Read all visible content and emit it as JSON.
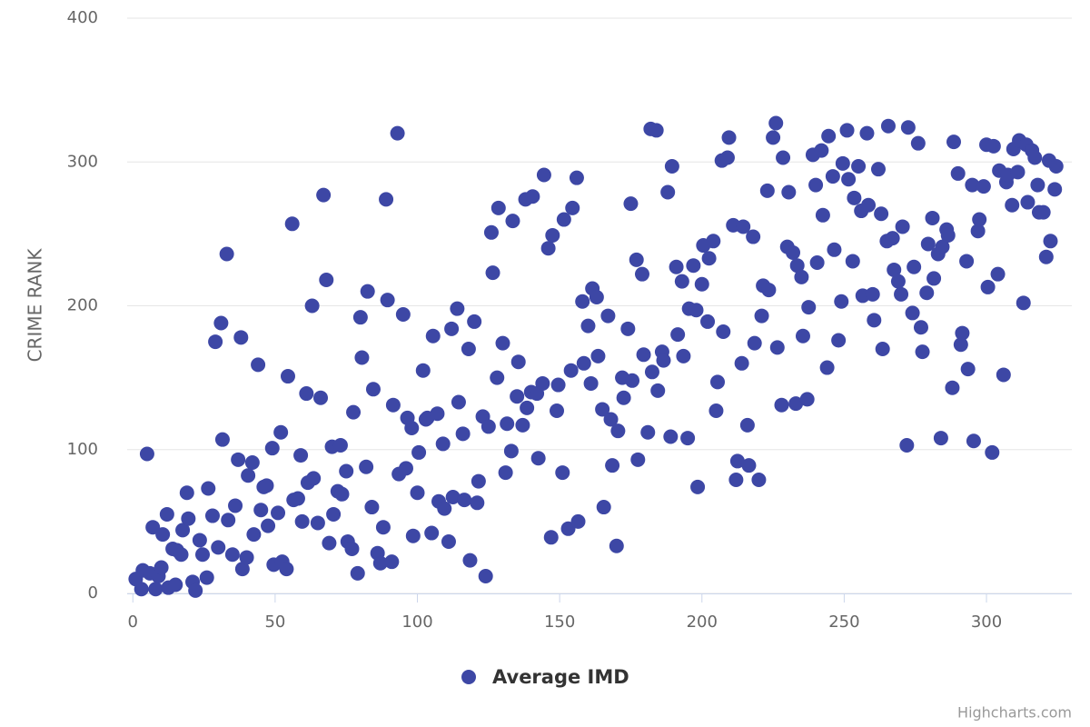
{
  "chart_data": {
    "type": "scatter",
    "y_label": "CRIME RANK",
    "credits": "Highcharts.com",
    "xlim": [
      -2,
      330
    ],
    "xticks": [
      0,
      50,
      100,
      150,
      200,
      250,
      300
    ],
    "ylim": [
      0,
      400
    ],
    "yticks": [
      0,
      100,
      200,
      300,
      400
    ],
    "grid": true,
    "legend": "bottom",
    "series": [
      {
        "name": "Average IMD",
        "color": "#3d47a5",
        "x": [
          1,
          3,
          3.5,
          5,
          6,
          7,
          8,
          9,
          10,
          10.5,
          12,
          12.5,
          14,
          15,
          15.5,
          17,
          17.5,
          19,
          19.5,
          21,
          22,
          23.5,
          24.5,
          26,
          26.5,
          28,
          29,
          30,
          31,
          31.5,
          33,
          33.5,
          35,
          36,
          37,
          38,
          38.5,
          40,
          40.5,
          42,
          42.5,
          44,
          45,
          46,
          47,
          47.5,
          49,
          49.5,
          51,
          52,
          52.5,
          54,
          54.5,
          56,
          56.5,
          58,
          59,
          59.5,
          61,
          61.5,
          63,
          63.5,
          65,
          66,
          67,
          68,
          69,
          70,
          70.5,
          72,
          73,
          73.5,
          75,
          75.5,
          77,
          77.5,
          79,
          80,
          80.5,
          82,
          82.5,
          84,
          84.5,
          86,
          87,
          88,
          89,
          89.5,
          91,
          91.5,
          93,
          93.5,
          95,
          96,
          96.5,
          98,
          98.5,
          100,
          100.5,
          102,
          103,
          103.5,
          105,
          105.5,
          107,
          107.5,
          109,
          109.5,
          111,
          112,
          112.5,
          114,
          114.5,
          116,
          116.5,
          118,
          118.5,
          120,
          121,
          121.5,
          123,
          124,
          125,
          126,
          126.5,
          128,
          128.5,
          130,
          131,
          131.5,
          133,
          133.5,
          135,
          135.5,
          137,
          138,
          138.5,
          140,
          140.5,
          142,
          142.5,
          144,
          144.5,
          146,
          147,
          147.5,
          149,
          149.5,
          151,
          151.5,
          153,
          154,
          154.5,
          156,
          156.5,
          158,
          158.5,
          160,
          161,
          161.5,
          163,
          163.5,
          165,
          165.5,
          167,
          168,
          168.5,
          170,
          170.5,
          172,
          172.5,
          174,
          175,
          175.5,
          177,
          177.5,
          179,
          179.5,
          181,
          182,
          182.5,
          184,
          184.5,
          186,
          186.5,
          188,
          189,
          189.5,
          191,
          191.5,
          193,
          193.5,
          195,
          195.5,
          197,
          198,
          198.5,
          200,
          200.5,
          202,
          202.5,
          204,
          205,
          205.5,
          207,
          207.5,
          209,
          209.5,
          211,
          212,
          212.5,
          214,
          214.5,
          216,
          216.5,
          218,
          218.5,
          220,
          221,
          221.5,
          223,
          223.5,
          225,
          226,
          226.5,
          228,
          228.5,
          230,
          230.5,
          232,
          233,
          233.5,
          235,
          235.5,
          237,
          237.5,
          239,
          240,
          240.5,
          242,
          242.5,
          244,
          244.5,
          246,
          246.5,
          248,
          249,
          249.5,
          251,
          251.5,
          253,
          253.5,
          255,
          256,
          256.5,
          258,
          258.5,
          260,
          260.5,
          262,
          263,
          263.5,
          265,
          265.5,
          267,
          267.5,
          269,
          270,
          270.5,
          272,
          272.5,
          274,
          274.5,
          276,
          277,
          277.5,
          279,
          279.5,
          281,
          281.5,
          283,
          284,
          284.5,
          286,
          286.5,
          288,
          288.5,
          290,
          291,
          291.5,
          293,
          293.5,
          295,
          295.5,
          297,
          297.5,
          299,
          300,
          300.5,
          302,
          302.5,
          304,
          304.5,
          306,
          307,
          307.5,
          309,
          309.5,
          311,
          311.5,
          313,
          314,
          314.5,
          316,
          317,
          318,
          318.5,
          320,
          321,
          322,
          322.5,
          324,
          324.5
        ],
        "values": [
          10,
          3,
          16,
          97,
          14,
          46,
          3,
          12,
          18,
          41,
          55,
          4,
          31,
          6,
          30,
          27,
          44,
          70,
          52,
          8,
          2,
          37,
          27,
          11,
          73,
          54,
          175,
          32,
          188,
          107,
          236,
          51,
          27,
          61,
          93,
          178,
          17,
          25,
          82,
          91,
          41,
          159,
          58,
          74,
          75,
          47,
          101,
          20,
          56,
          112,
          22,
          17,
          151,
          257,
          65,
          66,
          96,
          50,
          139,
          77,
          200,
          80,
          49,
          136,
          277,
          218,
          35,
          102,
          55,
          71,
          103,
          69,
          85,
          36,
          31,
          126,
          14,
          192,
          164,
          88,
          210,
          60,
          142,
          28,
          21,
          46,
          274,
          204,
          22,
          131,
          320,
          83,
          194,
          87,
          122,
          115,
          40,
          70,
          98,
          155,
          121,
          122,
          42,
          179,
          125,
          64,
          104,
          59,
          36,
          184,
          67,
          198,
          133,
          111,
          65,
          170,
          23,
          189,
          63,
          78,
          123,
          12,
          116,
          251,
          223,
          150,
          268,
          174,
          84,
          118,
          99,
          259,
          137,
          161,
          117,
          274,
          129,
          140,
          276,
          139,
          94,
          146,
          291,
          240,
          39,
          249,
          127,
          145,
          84,
          260,
          45,
          155,
          268,
          289,
          50,
          203,
          160,
          186,
          146,
          212,
          206,
          165,
          128,
          60,
          193,
          121,
          89,
          33,
          113,
          150,
          136,
          184,
          271,
          148,
          232,
          93,
          222,
          166,
          112,
          323,
          154,
          322,
          141,
          168,
          162,
          279,
          109,
          297,
          227,
          180,
          217,
          165,
          108,
          198,
          228,
          197,
          74,
          215,
          242,
          189,
          233,
          245,
          127,
          147,
          301,
          182,
          303,
          317,
          256,
          79,
          92,
          160,
          255,
          117,
          89,
          248,
          174,
          79,
          193,
          214,
          280,
          211,
          317,
          327,
          171,
          131,
          303,
          241,
          279,
          237,
          132,
          228,
          220,
          179,
          135,
          199,
          305,
          284,
          230,
          308,
          263,
          157,
          318,
          290,
          239,
          176,
          203,
          299,
          322,
          288,
          231,
          275,
          297,
          266,
          207,
          320,
          270,
          208,
          190,
          295,
          264,
          170,
          245,
          325,
          247,
          225,
          217,
          208,
          255,
          103,
          324,
          195,
          227,
          313,
          185,
          168,
          209,
          243,
          261,
          219,
          236,
          108,
          241,
          253,
          249,
          143,
          314,
          292,
          173,
          181,
          231,
          156,
          284,
          106,
          252,
          260,
          283,
          312,
          213,
          98,
          311,
          222,
          294,
          152,
          286,
          291,
          270,
          309,
          293,
          315,
          202,
          312,
          272,
          308,
          303,
          284,
          265,
          265,
          234,
          301,
          245,
          281,
          297
        ]
      }
    ]
  }
}
